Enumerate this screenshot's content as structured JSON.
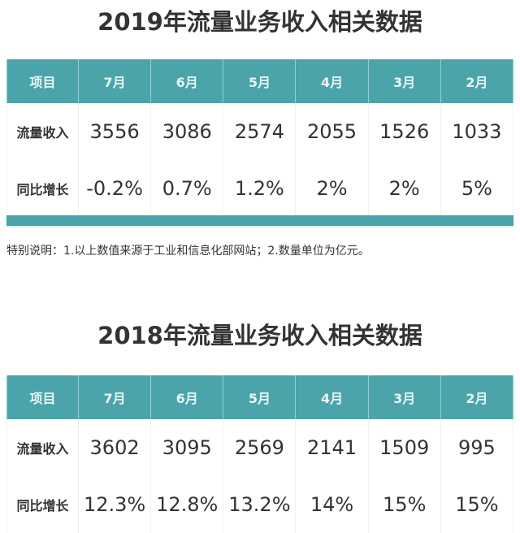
{
  "tables": [
    {
      "title": "2019年流量业务收入相关数据",
      "headers": [
        "项目",
        "7月",
        "6月",
        "5月",
        "4月",
        "3月",
        "2月"
      ],
      "rows": [
        {
          "label": "流量收入",
          "values": [
            "3556",
            "3086",
            "2574",
            "2055",
            "1526",
            "1033"
          ]
        },
        {
          "label": "同比增长",
          "values": [
            "-0.2%",
            "0.7%",
            "1.2%",
            "2%",
            "2%",
            "5%"
          ]
        }
      ]
    },
    {
      "title": "2018年流量业务收入相关数据",
      "headers": [
        "项目",
        "7月",
        "6月",
        "5月",
        "4月",
        "3月",
        "2月"
      ],
      "rows": [
        {
          "label": "流量收入",
          "values": [
            "3602",
            "3095",
            "2569",
            "2141",
            "1509",
            "995"
          ]
        },
        {
          "label": "同比增长",
          "values": [
            "12.3%",
            "12.8%",
            "13.2%",
            "14%",
            "15%",
            "15%"
          ]
        }
      ]
    }
  ],
  "note": "特别说明：1.以上数值来源于工业和信息化部网站；2.数量单位为亿元。",
  "colors": {
    "header_bg": "#4ba4a9",
    "header_text": "#eaf6f6",
    "text": "#333333"
  }
}
